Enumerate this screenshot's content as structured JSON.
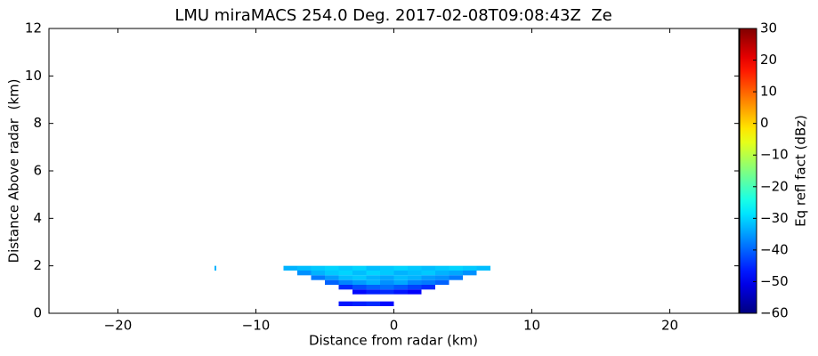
{
  "chart_data": {
    "type": "heatmap",
    "title": "LMU miraMACS 254.0 Deg. 2017-02-08T09:08:43Z  Ze",
    "x_label": "Distance from radar (km)",
    "y_label": "Distance Above radar  (km)",
    "colorbar_label": "Eq refl fact (dBz)",
    "colormap": "jet",
    "xlim": [
      -25,
      25
    ],
    "ylim": [
      0,
      12
    ],
    "clim": [
      -60,
      30
    ],
    "xticks": [
      {
        "value": -20,
        "label": "−20"
      },
      {
        "value": -10,
        "label": "−10"
      },
      0,
      10,
      20
    ],
    "yticks": [
      0,
      2,
      4,
      6,
      8,
      10,
      12
    ],
    "cticks": [
      {
        "value": -60,
        "label": "−60"
      },
      {
        "value": -50,
        "label": "−50"
      },
      {
        "value": -40,
        "label": "−40"
      },
      {
        "value": -30,
        "label": "−30"
      },
      {
        "value": -20,
        "label": "−20"
      },
      {
        "value": -10,
        "label": "−10"
      },
      0,
      10,
      20,
      30
    ],
    "x": [
      -7.5,
      -6.5,
      -5.5,
      -4.5,
      -3.5,
      -2.5,
      -1.5,
      -0.5,
      0.5,
      1.5,
      2.5,
      3.5,
      4.5,
      5.5,
      6.5,
      -6.5,
      -5.5,
      -4.5,
      -3.5,
      -2.5,
      -1.5,
      -0.5,
      0.5,
      1.5,
      2.5,
      3.5,
      4.5,
      5.5,
      -5.5,
      -4.5,
      -3.5,
      -2.5,
      -1.5,
      -0.5,
      0.5,
      1.5,
      2.5,
      3.5,
      4.5,
      -4.5,
      -3.5,
      -2.5,
      -1.5,
      -0.5,
      0.5,
      1.5,
      2.5,
      3.5,
      -3.5,
      -2.5,
      -1.5,
      -0.5,
      0.5,
      1.5,
      2.5,
      -2.5,
      -1.5,
      -0.5,
      0.5,
      1.5,
      -3.5,
      -2.5,
      -1.5,
      -0.5,
      -12.5
    ],
    "y": [
      1.9,
      1.9,
      1.9,
      1.9,
      1.9,
      1.9,
      1.9,
      1.9,
      1.9,
      1.9,
      1.9,
      1.9,
      1.9,
      1.9,
      1.9,
      1.7,
      1.7,
      1.7,
      1.7,
      1.7,
      1.7,
      1.7,
      1.7,
      1.7,
      1.7,
      1.7,
      1.7,
      1.7,
      1.5,
      1.5,
      1.5,
      1.5,
      1.5,
      1.5,
      1.5,
      1.5,
      1.5,
      1.5,
      1.5,
      1.3,
      1.3,
      1.3,
      1.3,
      1.3,
      1.3,
      1.3,
      1.3,
      1.3,
      1.1,
      1.1,
      1.1,
      1.1,
      1.1,
      1.1,
      1.1,
      0.9,
      0.9,
      0.9,
      0.9,
      0.9,
      0.4,
      0.4,
      0.4,
      0.4,
      1.9
    ],
    "values": [
      -33,
      -32,
      -31,
      -30,
      -31,
      -30,
      -32,
      -31,
      -30,
      -31,
      -32,
      -31,
      -30,
      -31,
      -32,
      -36,
      -33,
      -31,
      -30,
      -32,
      -30,
      -31,
      -33,
      -32,
      -31,
      -33,
      -34,
      -36,
      -38,
      -35,
      -32,
      -31,
      -33,
      -34,
      -32,
      -33,
      -35,
      -36,
      -38,
      -40,
      -37,
      -35,
      -33,
      -36,
      -34,
      -37,
      -38,
      -40,
      -45,
      -42,
      -40,
      -39,
      -41,
      -43,
      -45,
      -48,
      -46,
      -45,
      -47,
      -49,
      -47,
      -46,
      -45,
      -48,
      -33
    ]
  }
}
